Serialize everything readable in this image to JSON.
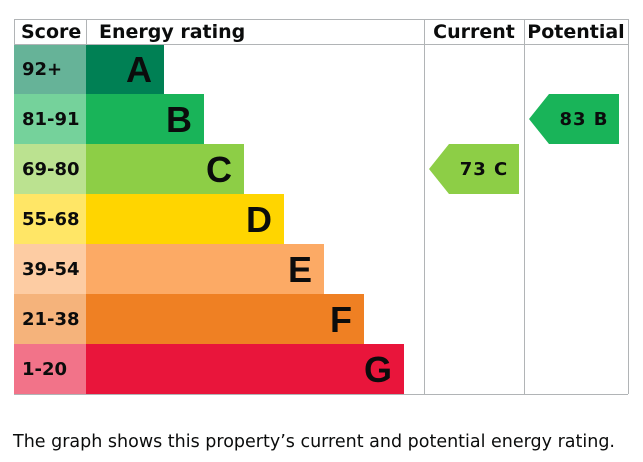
{
  "chart_data": {
    "type": "bar",
    "headers": {
      "score": "Score",
      "rating": "Energy rating",
      "current": "Current",
      "potential": "Potential"
    },
    "bands": [
      {
        "range": "92+",
        "letter": "A",
        "color": "#008054",
        "light": "#66b398"
      },
      {
        "range": "81-91",
        "letter": "B",
        "color": "#19b459",
        "light": "#75d29b"
      },
      {
        "range": "69-80",
        "letter": "C",
        "color": "#8dce46",
        "light": "#bbe290"
      },
      {
        "range": "55-68",
        "letter": "D",
        "color": "#ffd500",
        "light": "#ffe666"
      },
      {
        "range": "39-54",
        "letter": "E",
        "color": "#fcaa65",
        "light": "#fdcca3"
      },
      {
        "range": "21-38",
        "letter": "F",
        "color": "#ef8023",
        "light": "#f5b37b"
      },
      {
        "range": "1-20",
        "letter": "G",
        "color": "#e9153b",
        "light": "#f27389"
      }
    ],
    "current": {
      "value": 73,
      "band": "C",
      "label": "73 C"
    },
    "potential": {
      "value": 83,
      "band": "B",
      "label": "83 B"
    }
  },
  "caption": "The graph shows this property’s current and potential energy rating."
}
